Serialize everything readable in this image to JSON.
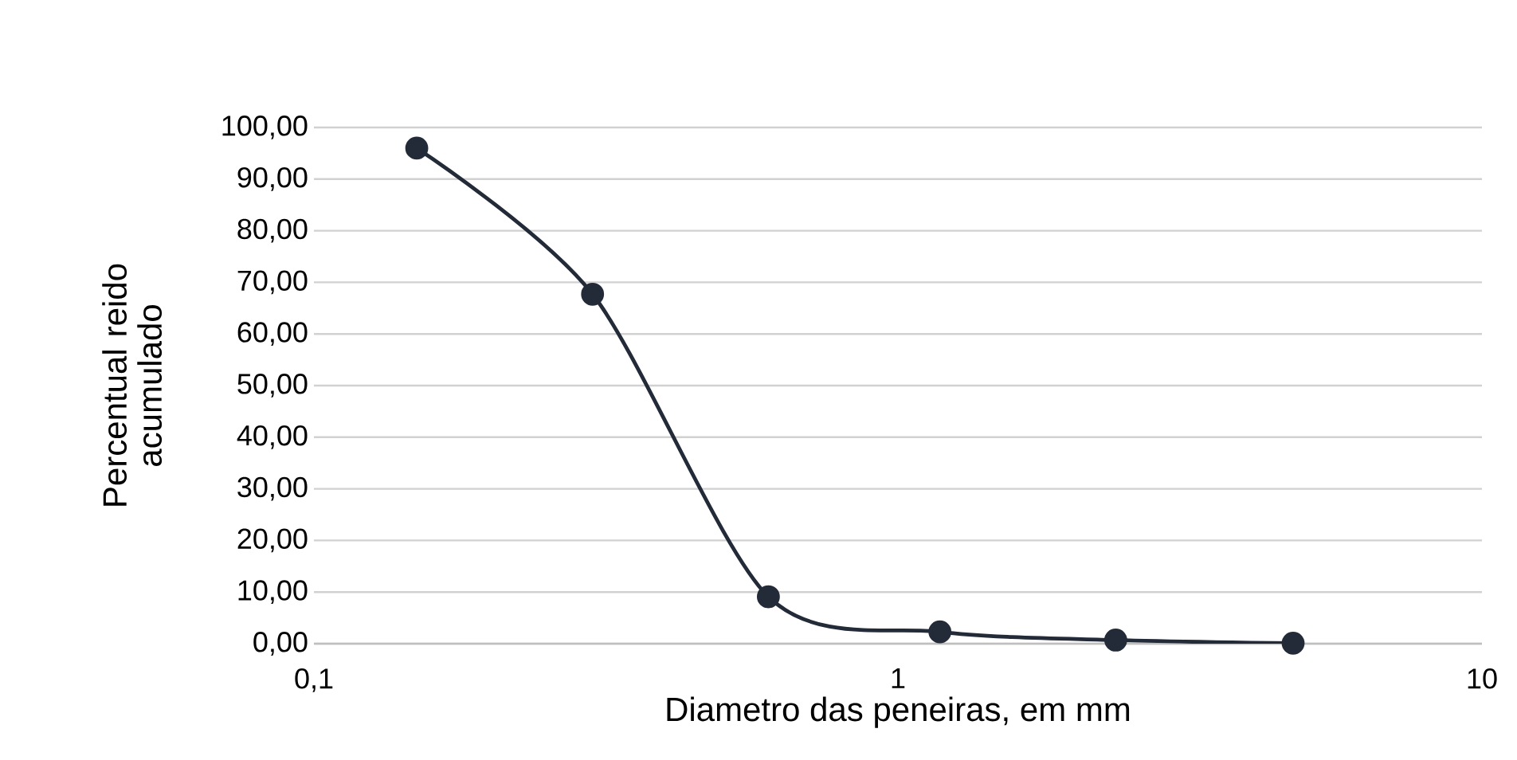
{
  "chart_data": {
    "type": "line",
    "xlabel": "Diametro das peneiras, em mm",
    "ylabel": "Percentual reido acumulado",
    "x": [
      0.15,
      0.3,
      0.6,
      1.18,
      2.36,
      4.75
    ],
    "series": [
      {
        "color": "#232a38",
        "values": [
          96.0,
          67.7,
          9.1,
          2.3,
          0.7,
          0.1
        ]
      }
    ],
    "log": "x",
    "xlim": [
      0.1,
      10
    ],
    "xticks": [
      {
        "value": 0.1,
        "label": "0,1"
      },
      1,
      10
    ],
    "ylim": [
      0,
      100
    ],
    "yticks": [
      {
        "value": 0,
        "label": "0,00"
      },
      {
        "value": 10,
        "label": "10,00"
      },
      {
        "value": 20,
        "label": "20,00"
      },
      {
        "value": 30,
        "label": "30,00"
      },
      {
        "value": 40,
        "label": "40,00"
      },
      {
        "value": 50,
        "label": "50,00"
      },
      {
        "value": 60,
        "label": "60,00"
      },
      {
        "value": 70,
        "label": "70,00"
      },
      {
        "value": 80,
        "label": "80,00"
      },
      {
        "value": 90,
        "label": "90,00"
      },
      {
        "value": 100,
        "label": "100,00"
      }
    ],
    "grid": "y",
    "marker": "circle",
    "line_style": "solid"
  }
}
